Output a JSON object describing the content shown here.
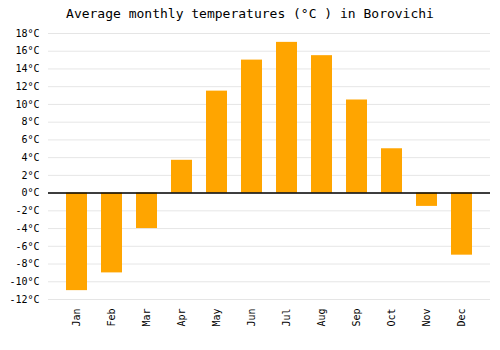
{
  "chart_data": {
    "type": "bar",
    "title": "Average monthly temperatures (°C ) in Borovichi",
    "categories": [
      "Jan",
      "Feb",
      "Mar",
      "Apr",
      "May",
      "Jun",
      "Jul",
      "Aug",
      "Sep",
      "Oct",
      "Nov",
      "Dec"
    ],
    "values": [
      -11,
      -9,
      -4,
      3.7,
      11.5,
      15,
      17,
      15.5,
      10.5,
      5,
      -1.5,
      -7
    ],
    "color": "#FFA500",
    "ylim": [
      -12,
      18
    ],
    "yticks": [
      {
        "value": -12,
        "label": "-12°C"
      },
      {
        "value": -10,
        "label": "-10°C"
      },
      {
        "value": -8,
        "label": "-8°C"
      },
      {
        "value": -6,
        "label": "-6°C"
      },
      {
        "value": -4,
        "label": "-4°C"
      },
      {
        "value": -2,
        "label": "-2°C"
      },
      {
        "value": 0,
        "label": "0°C"
      },
      {
        "value": 2,
        "label": "2°C"
      },
      {
        "value": 4,
        "label": "4°C"
      },
      {
        "value": 6,
        "label": "6°C"
      },
      {
        "value": 8,
        "label": "8°C"
      },
      {
        "value": 10,
        "label": "10°C"
      },
      {
        "value": 12,
        "label": "12°C"
      },
      {
        "value": 14,
        "label": "14°C"
      },
      {
        "value": 16,
        "label": "16°C"
      },
      {
        "value": 18,
        "label": "18°C"
      }
    ],
    "grid": true
  }
}
